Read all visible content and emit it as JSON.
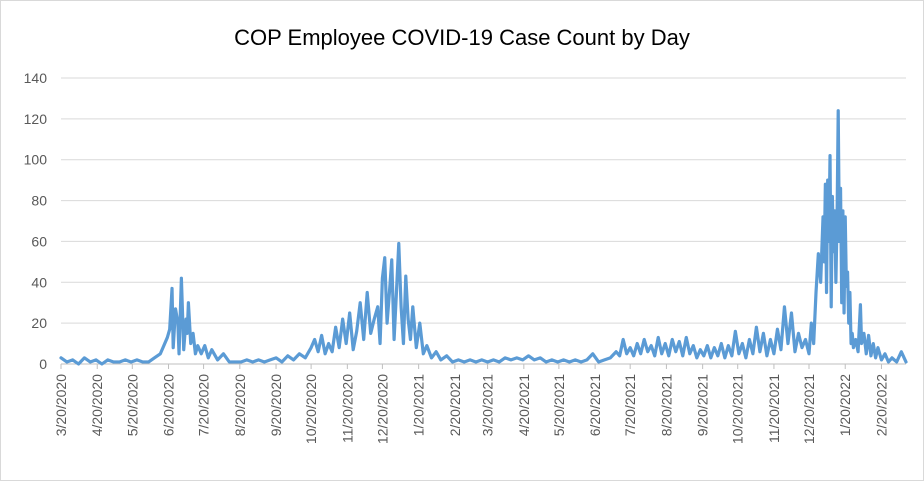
{
  "chart_data": {
    "type": "line",
    "title": "COP Employee COVID-19 Case Count by Day",
    "xlabel": "",
    "ylabel": "",
    "ylim": [
      0,
      140
    ],
    "yticks": [
      0,
      20,
      40,
      60,
      80,
      100,
      120,
      140
    ],
    "grid": "horizontal",
    "legend": "none",
    "x_start": "3/20/2020",
    "x_end": "3/13/2022",
    "x_ticks": [
      "3/20/2020",
      "4/20/2020",
      "5/20/2020",
      "6/20/2020",
      "7/20/2020",
      "8/20/2020",
      "9/20/2020",
      "10/20/2020",
      "11/20/2020",
      "12/20/2020",
      "1/20/2021",
      "2/20/2021",
      "3/20/2021",
      "4/20/2021",
      "5/20/2021",
      "6/20/2021",
      "7/20/2021",
      "8/20/2021",
      "9/20/2021",
      "10/20/2021",
      "11/20/2021",
      "12/20/2021",
      "1/20/2022",
      "2/20/2022"
    ],
    "series_color": "#5b9bd5",
    "series": [
      {
        "name": "",
        "points": [
          [
            "3/20/2020",
            3
          ],
          [
            "3/25/2020",
            1
          ],
          [
            "3/30/2020",
            2
          ],
          [
            "4/4/2020",
            0
          ],
          [
            "4/9/2020",
            3
          ],
          [
            "4/14/2020",
            1
          ],
          [
            "4/19/2020",
            2
          ],
          [
            "4/24/2020",
            0
          ],
          [
            "4/29/2020",
            2
          ],
          [
            "5/4/2020",
            1
          ],
          [
            "5/9/2020",
            1
          ],
          [
            "5/14/2020",
            2
          ],
          [
            "5/19/2020",
            1
          ],
          [
            "5/24/2020",
            2
          ],
          [
            "5/29/2020",
            1
          ],
          [
            "6/3/2020",
            1
          ],
          [
            "6/8/2020",
            3
          ],
          [
            "6/13/2020",
            5
          ],
          [
            "6/16/2020",
            9
          ],
          [
            "6/19/2020",
            13
          ],
          [
            "6/21/2020",
            17
          ],
          [
            "6/23/2020",
            37
          ],
          [
            "6/24/2020",
            8
          ],
          [
            "6/26/2020",
            27
          ],
          [
            "6/28/2020",
            20
          ],
          [
            "6/29/2020",
            5
          ],
          [
            "7/1/2020",
            42
          ],
          [
            "7/3/2020",
            7
          ],
          [
            "7/5/2020",
            22
          ],
          [
            "7/6/2020",
            15
          ],
          [
            "7/7/2020",
            30
          ],
          [
            "7/9/2020",
            10
          ],
          [
            "7/11/2020",
            15
          ],
          [
            "7/13/2020",
            5
          ],
          [
            "7/15/2020",
            9
          ],
          [
            "7/18/2020",
            5
          ],
          [
            "7/21/2020",
            9
          ],
          [
            "7/24/2020",
            3
          ],
          [
            "7/27/2020",
            7
          ],
          [
            "8/1/2020",
            2
          ],
          [
            "8/6/2020",
            5
          ],
          [
            "8/11/2020",
            1
          ],
          [
            "8/16/2020",
            1
          ],
          [
            "8/21/2020",
            1
          ],
          [
            "8/26/2020",
            2
          ],
          [
            "8/31/2020",
            1
          ],
          [
            "9/5/2020",
            2
          ],
          [
            "9/10/2020",
            1
          ],
          [
            "9/15/2020",
            2
          ],
          [
            "9/20/2020",
            3
          ],
          [
            "9/25/2020",
            1
          ],
          [
            "9/30/2020",
            4
          ],
          [
            "10/5/2020",
            2
          ],
          [
            "10/10/2020",
            5
          ],
          [
            "10/15/2020",
            3
          ],
          [
            "10/20/2020",
            8
          ],
          [
            "10/23/2020",
            12
          ],
          [
            "10/26/2020",
            6
          ],
          [
            "10/29/2020",
            14
          ],
          [
            "11/1/2020",
            5
          ],
          [
            "11/4/2020",
            10
          ],
          [
            "11/7/2020",
            6
          ],
          [
            "11/10/2020",
            18
          ],
          [
            "11/13/2020",
            8
          ],
          [
            "11/16/2020",
            22
          ],
          [
            "11/19/2020",
            10
          ],
          [
            "11/22/2020",
            25
          ],
          [
            "11/25/2020",
            7
          ],
          [
            "11/28/2020",
            16
          ],
          [
            "12/1/2020",
            30
          ],
          [
            "12/4/2020",
            12
          ],
          [
            "12/7/2020",
            35
          ],
          [
            "12/10/2020",
            15
          ],
          [
            "12/13/2020",
            22
          ],
          [
            "12/16/2020",
            28
          ],
          [
            "12/18/2020",
            10
          ],
          [
            "12/20/2020",
            42
          ],
          [
            "12/22/2020",
            52
          ],
          [
            "12/24/2020",
            20
          ],
          [
            "12/26/2020",
            35
          ],
          [
            "12/28/2020",
            51
          ],
          [
            "12/30/2020",
            12
          ],
          [
            "1/1/2021",
            35
          ],
          [
            "1/3/2021",
            59
          ],
          [
            "1/5/2021",
            28
          ],
          [
            "1/7/2021",
            10
          ],
          [
            "1/9/2021",
            43
          ],
          [
            "1/11/2021",
            22
          ],
          [
            "1/13/2021",
            12
          ],
          [
            "1/15/2021",
            28
          ],
          [
            "1/18/2021",
            8
          ],
          [
            "1/21/2021",
            20
          ],
          [
            "1/24/2021",
            5
          ],
          [
            "1/27/2021",
            9
          ],
          [
            "1/31/2021",
            3
          ],
          [
            "2/4/2021",
            6
          ],
          [
            "2/8/2021",
            2
          ],
          [
            "2/13/2021",
            4
          ],
          [
            "2/18/2021",
            1
          ],
          [
            "2/23/2021",
            2
          ],
          [
            "2/28/2021",
            1
          ],
          [
            "3/5/2021",
            2
          ],
          [
            "3/10/2021",
            1
          ],
          [
            "3/15/2021",
            2
          ],
          [
            "3/20/2021",
            1
          ],
          [
            "3/25/2021",
            2
          ],
          [
            "3/30/2021",
            1
          ],
          [
            "4/4/2021",
            3
          ],
          [
            "4/9/2021",
            2
          ],
          [
            "4/14/2021",
            3
          ],
          [
            "4/19/2021",
            2
          ],
          [
            "4/24/2021",
            4
          ],
          [
            "4/29/2021",
            2
          ],
          [
            "5/4/2021",
            3
          ],
          [
            "5/9/2021",
            1
          ],
          [
            "5/14/2021",
            2
          ],
          [
            "5/19/2021",
            1
          ],
          [
            "5/24/2021",
            2
          ],
          [
            "5/29/2021",
            1
          ],
          [
            "6/3/2021",
            2
          ],
          [
            "6/8/2021",
            1
          ],
          [
            "6/13/2021",
            2
          ],
          [
            "6/18/2021",
            5
          ],
          [
            "6/23/2021",
            1
          ],
          [
            "6/28/2021",
            2
          ],
          [
            "7/3/2021",
            3
          ],
          [
            "7/8/2021",
            6
          ],
          [
            "7/11/2021",
            4
          ],
          [
            "7/14/2021",
            12
          ],
          [
            "7/17/2021",
            5
          ],
          [
            "7/20/2021",
            8
          ],
          [
            "7/23/2021",
            4
          ],
          [
            "7/26/2021",
            10
          ],
          [
            "7/29/2021",
            5
          ],
          [
            "8/1/2021",
            12
          ],
          [
            "8/4/2021",
            6
          ],
          [
            "8/7/2021",
            9
          ],
          [
            "8/10/2021",
            4
          ],
          [
            "8/13/2021",
            13
          ],
          [
            "8/16/2021",
            5
          ],
          [
            "8/19/2021",
            10
          ],
          [
            "8/22/2021",
            4
          ],
          [
            "8/25/2021",
            12
          ],
          [
            "8/28/2021",
            6
          ],
          [
            "8/31/2021",
            11
          ],
          [
            "9/3/2021",
            4
          ],
          [
            "9/6/2021",
            13
          ],
          [
            "9/9/2021",
            5
          ],
          [
            "9/12/2021",
            9
          ],
          [
            "9/15/2021",
            3
          ],
          [
            "9/18/2021",
            7
          ],
          [
            "9/21/2021",
            4
          ],
          [
            "9/24/2021",
            9
          ],
          [
            "9/27/2021",
            3
          ],
          [
            "9/30/2021",
            8
          ],
          [
            "10/3/2021",
            4
          ],
          [
            "10/6/2021",
            10
          ],
          [
            "10/9/2021",
            3
          ],
          [
            "10/12/2021",
            9
          ],
          [
            "10/15/2021",
            4
          ],
          [
            "10/18/2021",
            16
          ],
          [
            "10/21/2021",
            5
          ],
          [
            "10/24/2021",
            10
          ],
          [
            "10/27/2021",
            3
          ],
          [
            "10/30/2021",
            12
          ],
          [
            "11/2/2021",
            5
          ],
          [
            "11/5/2021",
            18
          ],
          [
            "11/8/2021",
            6
          ],
          [
            "11/11/2021",
            15
          ],
          [
            "11/14/2021",
            4
          ],
          [
            "11/17/2021",
            12
          ],
          [
            "11/20/2021",
            5
          ],
          [
            "11/23/2021",
            17
          ],
          [
            "11/26/2021",
            7
          ],
          [
            "11/29/2021",
            28
          ],
          [
            "12/2/2021",
            10
          ],
          [
            "12/5/2021",
            25
          ],
          [
            "12/8/2021",
            6
          ],
          [
            "12/11/2021",
            15
          ],
          [
            "12/14/2021",
            8
          ],
          [
            "12/17/2021",
            12
          ],
          [
            "12/20/2021",
            5
          ],
          [
            "12/22/2021",
            20
          ],
          [
            "12/24/2021",
            10
          ],
          [
            "12/26/2021",
            35
          ],
          [
            "12/28/2021",
            54
          ],
          [
            "12/30/2021",
            40
          ],
          [
            "1/1/2022",
            72
          ],
          [
            "1/2/2022",
            50
          ],
          [
            "1/3/2022",
            88
          ],
          [
            "1/4/2022",
            35
          ],
          [
            "1/5/2022",
            90
          ],
          [
            "1/6/2022",
            60
          ],
          [
            "1/7/2022",
            102
          ],
          [
            "1/8/2022",
            28
          ],
          [
            "1/9/2022",
            82
          ],
          [
            "1/10/2022",
            55
          ],
          [
            "1/11/2022",
            75
          ],
          [
            "1/12/2022",
            40
          ],
          [
            "1/13/2022",
            70
          ],
          [
            "1/14/2022",
            124
          ],
          [
            "1/15/2022",
            60
          ],
          [
            "1/16/2022",
            86
          ],
          [
            "1/17/2022",
            30
          ],
          [
            "1/18/2022",
            75
          ],
          [
            "1/19/2022",
            25
          ],
          [
            "1/20/2022",
            72
          ],
          [
            "1/21/2022",
            38
          ],
          [
            "1/22/2022",
            45
          ],
          [
            "1/23/2022",
            20
          ],
          [
            "1/24/2022",
            35
          ],
          [
            "1/25/2022",
            10
          ],
          [
            "1/26/2022",
            15
          ],
          [
            "1/27/2022",
            8
          ],
          [
            "1/29/2022",
            12
          ],
          [
            "1/31/2022",
            6
          ],
          [
            "2/2/2022",
            29
          ],
          [
            "2/3/2022",
            10
          ],
          [
            "2/5/2022",
            15
          ],
          [
            "2/7/2022",
            5
          ],
          [
            "2/9/2022",
            14
          ],
          [
            "2/11/2022",
            4
          ],
          [
            "2/13/2022",
            10
          ],
          [
            "2/15/2022",
            3
          ],
          [
            "2/17/2022",
            8
          ],
          [
            "2/20/2022",
            2
          ],
          [
            "2/23/2022",
            5
          ],
          [
            "2/26/2022",
            1
          ],
          [
            "3/1/2022",
            3
          ],
          [
            "3/5/2022",
            1
          ],
          [
            "3/9/2022",
            6
          ],
          [
            "3/13/2022",
            1
          ]
        ]
      }
    ]
  }
}
